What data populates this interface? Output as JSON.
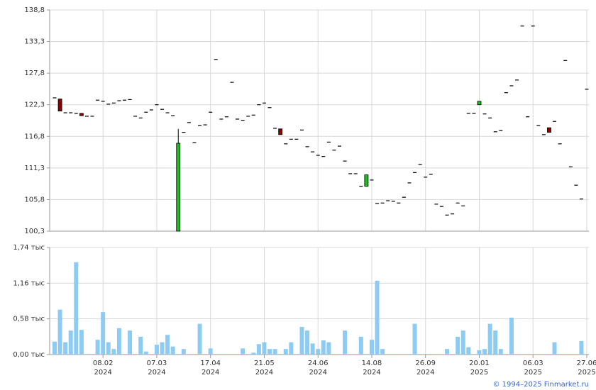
{
  "chart_data": [
    {
      "type": "candlestick",
      "ylim": [
        100.3,
        138.8
      ],
      "yticks": [
        {
          "value": 100.3,
          "label": "100,3"
        },
        {
          "value": 105.8,
          "label": "105,8"
        },
        {
          "value": 111.3,
          "label": "111,3"
        },
        {
          "value": 116.8,
          "label": "116,8"
        },
        {
          "value": 122.3,
          "label": "122,3"
        },
        {
          "value": 127.8,
          "label": "127,8"
        },
        {
          "value": 133.3,
          "label": "133,3"
        },
        {
          "value": 138.8,
          "label": "138,8"
        }
      ],
      "grid": true,
      "up_color": "#22bb22",
      "down_color": "#8b0000",
      "flat_color": "#000000",
      "open": [
        123.5,
        123.3,
        120.9,
        120.9,
        120.8,
        120.8,
        120.3,
        120.3,
        123.1,
        122.9,
        122.4,
        122.6,
        123.0,
        123.1,
        123.2,
        120.3,
        120.0,
        121.0,
        121.4,
        122.3,
        121.5,
        120.9,
        120.4,
        100.3,
        117.5,
        119.2,
        115.7,
        118.7,
        118.8,
        121.0,
        130.2,
        119.8,
        120.2,
        126.2,
        119.8,
        119.6,
        120.3,
        120.5,
        122.3,
        122.6,
        121.8,
        118.2,
        118.1,
        115.5,
        116.3,
        116.3,
        117.9,
        115.0,
        114.1,
        113.5,
        113.3,
        115.8,
        114.4,
        115.1,
        112.5,
        110.3,
        110.3,
        108.1,
        108.1,
        109.2,
        105.1,
        105.2,
        105.6,
        105.5,
        105.2,
        106.2,
        108.7,
        110.5,
        111.9,
        109.7,
        110.2,
        105.0,
        104.6,
        103.1,
        103.3,
        105.2,
        104.7,
        120.8,
        120.8,
        122.3,
        120.7,
        120.0,
        117.6,
        117.8,
        124.4,
        125.6,
        126.6,
        136.0,
        120.2,
        136.0,
        118.7,
        117.1,
        118.3,
        119.4,
        115.5,
        130.0,
        111.5,
        108.3,
        105.9,
        125.0
      ],
      "close": [
        123.5,
        121.2,
        120.9,
        120.9,
        120.8,
        120.4,
        120.3,
        120.3,
        123.1,
        122.9,
        122.4,
        122.6,
        123.0,
        123.1,
        123.2,
        120.3,
        120.0,
        121.0,
        121.4,
        122.3,
        121.5,
        120.9,
        120.4,
        115.6,
        117.5,
        119.2,
        115.7,
        118.7,
        118.8,
        121.0,
        130.2,
        119.8,
        120.2,
        126.2,
        119.8,
        119.6,
        120.3,
        120.5,
        122.3,
        122.6,
        121.8,
        118.2,
        117.1,
        115.5,
        116.3,
        116.3,
        117.9,
        115.0,
        114.1,
        113.5,
        113.3,
        115.8,
        114.4,
        115.1,
        112.5,
        110.3,
        110.3,
        108.1,
        110.1,
        109.2,
        105.1,
        105.2,
        105.6,
        105.5,
        105.2,
        106.2,
        108.7,
        110.5,
        111.9,
        109.7,
        110.2,
        105.0,
        104.6,
        103.1,
        103.3,
        105.2,
        104.7,
        120.8,
        120.8,
        122.9,
        120.7,
        120.0,
        117.6,
        117.8,
        124.4,
        125.6,
        126.6,
        136.0,
        120.2,
        136.0,
        118.7,
        117.1,
        117.5,
        119.4,
        115.5,
        130.0,
        111.5,
        108.3,
        105.9,
        125.0
      ],
      "high": [
        123.5,
        123.3,
        120.9,
        120.9,
        120.8,
        120.8,
        120.3,
        120.3,
        123.1,
        122.9,
        122.4,
        122.6,
        123.0,
        123.1,
        123.2,
        120.3,
        120.0,
        121.0,
        121.4,
        122.3,
        121.5,
        120.9,
        120.4,
        118.1,
        117.5,
        119.2,
        115.7,
        118.7,
        118.8,
        121.0,
        130.2,
        119.8,
        120.2,
        126.2,
        119.8,
        119.6,
        120.3,
        120.5,
        122.3,
        122.6,
        121.8,
        118.2,
        118.1,
        115.5,
        116.3,
        116.3,
        117.9,
        115.0,
        114.1,
        113.5,
        113.3,
        115.8,
        114.4,
        115.1,
        112.5,
        110.3,
        110.3,
        108.1,
        110.1,
        109.2,
        105.1,
        105.2,
        105.6,
        105.5,
        105.2,
        106.2,
        108.7,
        110.5,
        111.9,
        109.7,
        110.2,
        105.0,
        104.6,
        103.1,
        103.3,
        105.2,
        104.7,
        120.8,
        120.8,
        122.9,
        120.7,
        120.0,
        117.6,
        117.8,
        124.4,
        125.6,
        126.6,
        136.0,
        120.2,
        136.0,
        118.7,
        117.1,
        118.3,
        119.4,
        115.5,
        130.0,
        111.5,
        108.3,
        105.9,
        125.0
      ],
      "low": [
        123.5,
        121.2,
        120.9,
        120.9,
        120.8,
        120.4,
        120.3,
        120.3,
        123.1,
        122.9,
        122.4,
        122.6,
        123.0,
        123.1,
        123.2,
        120.3,
        120.0,
        121.0,
        121.4,
        122.3,
        121.5,
        120.9,
        120.4,
        100.3,
        117.5,
        119.2,
        115.7,
        118.7,
        118.8,
        121.0,
        130.2,
        119.8,
        120.2,
        126.2,
        119.8,
        119.6,
        120.3,
        120.5,
        122.3,
        122.6,
        121.8,
        118.2,
        117.1,
        115.5,
        116.3,
        116.3,
        117.9,
        115.0,
        114.1,
        113.5,
        113.3,
        115.8,
        114.4,
        115.1,
        112.5,
        110.3,
        110.3,
        108.1,
        108.1,
        109.2,
        105.1,
        105.2,
        105.6,
        105.5,
        105.2,
        106.2,
        108.7,
        110.5,
        111.9,
        109.7,
        110.2,
        105.0,
        104.6,
        103.1,
        103.3,
        105.2,
        104.7,
        120.8,
        120.8,
        122.3,
        120.7,
        120.0,
        117.6,
        117.8,
        124.4,
        125.6,
        126.6,
        136.0,
        120.2,
        136.0,
        118.7,
        117.1,
        117.5,
        119.4,
        115.5,
        130.0,
        111.5,
        108.3,
        105.9,
        125.0
      ]
    },
    {
      "type": "bar",
      "ylim": [
        0,
        1.74
      ],
      "yticks": [
        {
          "value": 0,
          "label": "0,00 тыс"
        },
        {
          "value": 0.58,
          "label": "0,58 тыс"
        },
        {
          "value": 1.16,
          "label": "1,16 тыс"
        },
        {
          "value": 1.74,
          "label": "1,74 тыс"
        }
      ],
      "grid": true,
      "color": "#8ecbf2",
      "categories": [
        null,
        null,
        null,
        null,
        null,
        null,
        null,
        null,
        null,
        [
          "08.02",
          "2024"
        ],
        null,
        null,
        null,
        null,
        null,
        null,
        null,
        null,
        null,
        [
          "07.03",
          "2024"
        ],
        null,
        null,
        null,
        null,
        null,
        null,
        null,
        null,
        null,
        [
          "17.04",
          "2024"
        ],
        null,
        null,
        null,
        null,
        null,
        null,
        null,
        null,
        null,
        [
          "21.05",
          "2024"
        ],
        null,
        null,
        null,
        null,
        null,
        null,
        null,
        null,
        null,
        [
          "24.06",
          "2024"
        ],
        null,
        null,
        null,
        null,
        null,
        null,
        null,
        null,
        null,
        [
          "14.08",
          "2024"
        ],
        null,
        null,
        null,
        null,
        null,
        null,
        null,
        null,
        null,
        [
          "26.09",
          "2024"
        ],
        null,
        null,
        null,
        null,
        null,
        null,
        null,
        null,
        null,
        [
          "20.01",
          "2025"
        ],
        null,
        null,
        null,
        null,
        null,
        null,
        null,
        null,
        null,
        [
          "06.03",
          "2025"
        ],
        null,
        null,
        null,
        null,
        null,
        null,
        null,
        null,
        null,
        [
          "27.06",
          "2025"
        ]
      ],
      "values": [
        0.21,
        0.73,
        0.2,
        0.39,
        1.5,
        0.4,
        0.01,
        0.01,
        0.24,
        0.69,
        0.2,
        0.09,
        0.43,
        0.01,
        0.39,
        0.01,
        0.29,
        0.05,
        0.01,
        0.16,
        0.2,
        0.32,
        0.13,
        0.01,
        0.09,
        0.01,
        0.01,
        0.5,
        0.01,
        0.1,
        0.01,
        0.01,
        0.01,
        0.01,
        0.01,
        0.1,
        0.01,
        0.03,
        0.17,
        0.2,
        0.09,
        0.09,
        0.01,
        0.09,
        0.2,
        0.01,
        0.45,
        0.39,
        0.18,
        0.09,
        0.23,
        0.2,
        0.01,
        0.01,
        0.39,
        0.01,
        0.01,
        0.29,
        0.01,
        0.24,
        1.2,
        0.09,
        0.01,
        0.01,
        0.01,
        0.01,
        0.01,
        0.5,
        0.01,
        0.01,
        0.01,
        0.01,
        0.01,
        0.09,
        0.01,
        0.29,
        0.39,
        0.12,
        0.01,
        0.07,
        0.09,
        0.5,
        0.39,
        0.09,
        0.01,
        0.6,
        0.01,
        0.01,
        0.01,
        0.01,
        0.01,
        0.01,
        0.01,
        0.2,
        0.01,
        0.01,
        0.01,
        0.01,
        0.22,
        0.01
      ]
    }
  ],
  "source": "© 1994–2025 Finmarket.ru"
}
